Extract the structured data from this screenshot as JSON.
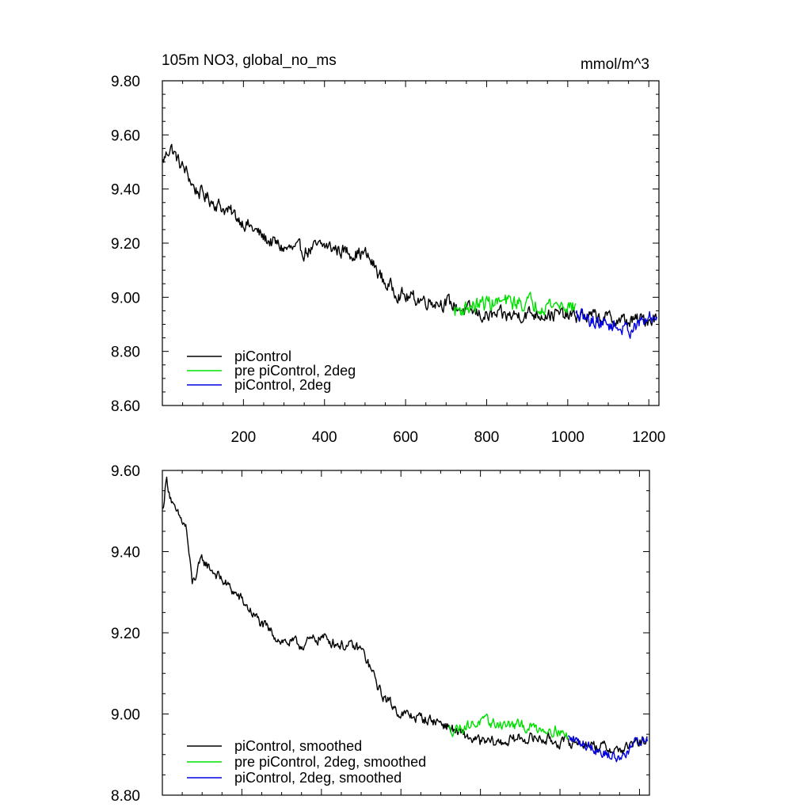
{
  "chart_data": [
    {
      "type": "line",
      "title": "105m NO3, global_no_ms",
      "units": "mmol/m^3",
      "xlim": [
        0,
        1225
      ],
      "ylim": [
        8.6,
        9.8
      ],
      "x_ticks": [
        200,
        400,
        600,
        800,
        1000,
        1200
      ],
      "x_tick_labels": [
        "200",
        "400",
        "600",
        "800",
        "1000",
        "1200"
      ],
      "y_ticks": [
        8.6,
        8.8,
        9.0,
        9.2,
        9.4,
        9.6,
        9.8
      ],
      "y_tick_labels": [
        "8.60",
        "8.80",
        "9.00",
        "9.20",
        "9.40",
        "9.60",
        "9.80"
      ],
      "legend_position": "bottom-left",
      "series": [
        {
          "name": "piControl",
          "color": "#000000",
          "x_range": [
            1,
            1220
          ],
          "anchors": [
            [
              1,
              9.5
            ],
            [
              20,
              9.56
            ],
            [
              40,
              9.5
            ],
            [
              60,
              9.46
            ],
            [
              80,
              9.4
            ],
            [
              100,
              9.38
            ],
            [
              150,
              9.33
            ],
            [
              200,
              9.28
            ],
            [
              250,
              9.22
            ],
            [
              300,
              9.18
            ],
            [
              350,
              9.17
            ],
            [
              400,
              9.19
            ],
            [
              450,
              9.17
            ],
            [
              500,
              9.16
            ],
            [
              520,
              9.12
            ],
            [
              550,
              9.05
            ],
            [
              600,
              9.0
            ],
            [
              650,
              8.99
            ],
            [
              700,
              8.98
            ],
            [
              750,
              8.95
            ],
            [
              800,
              8.93
            ],
            [
              850,
              8.93
            ],
            [
              900,
              8.94
            ],
            [
              950,
              8.94
            ],
            [
              1000,
              8.93
            ],
            [
              1050,
              8.93
            ],
            [
              1100,
              8.92
            ],
            [
              1150,
              8.91
            ],
            [
              1200,
              8.92
            ],
            [
              1220,
              8.93
            ]
          ],
          "noise_amplitude": 0.05
        },
        {
          "name": "pre piControl, 2deg",
          "color": "#00e000",
          "x_range": [
            720,
            1020
          ],
          "anchors": [
            [
              720,
              8.95
            ],
            [
              800,
              8.98
            ],
            [
              900,
              8.98
            ],
            [
              1000,
              8.97
            ],
            [
              1020,
              8.96
            ]
          ],
          "noise_amplitude": 0.055
        },
        {
          "name": "piControl, 2deg",
          "color": "#0000e0",
          "x_range": [
            1020,
            1220
          ],
          "anchors": [
            [
              1020,
              8.93
            ],
            [
              1100,
              8.9
            ],
            [
              1150,
              8.88
            ],
            [
              1200,
              8.92
            ],
            [
              1220,
              8.93
            ]
          ],
          "noise_amplitude": 0.05
        }
      ]
    },
    {
      "type": "line",
      "xlim": [
        0,
        1225
      ],
      "ylim": [
        8.8,
        9.6
      ],
      "y_ticks": [
        8.8,
        9.0,
        9.2,
        9.4,
        9.6
      ],
      "y_tick_labels": [
        "8.80",
        "9.00",
        "9.20",
        "9.40",
        "9.60"
      ],
      "legend_position": "bottom-left",
      "series": [
        {
          "name": "piControl, smoothed",
          "color": "#000000",
          "x_range": [
            1,
            1220
          ],
          "anchors": [
            [
              1,
              9.5
            ],
            [
              10,
              9.58
            ],
            [
              30,
              9.5
            ],
            [
              60,
              9.46
            ],
            [
              75,
              9.32
            ],
            [
              100,
              9.38
            ],
            [
              150,
              9.33
            ],
            [
              200,
              9.28
            ],
            [
              250,
              9.22
            ],
            [
              300,
              9.18
            ],
            [
              350,
              9.17
            ],
            [
              400,
              9.19
            ],
            [
              450,
              9.17
            ],
            [
              500,
              9.16
            ],
            [
              520,
              9.12
            ],
            [
              550,
              9.05
            ],
            [
              600,
              9.0
            ],
            [
              650,
              8.99
            ],
            [
              700,
              8.98
            ],
            [
              750,
              8.95
            ],
            [
              800,
              8.93
            ],
            [
              850,
              8.93
            ],
            [
              900,
              8.94
            ],
            [
              950,
              8.94
            ],
            [
              1000,
              8.93
            ],
            [
              1050,
              8.93
            ],
            [
              1100,
              8.92
            ],
            [
              1150,
              8.91
            ],
            [
              1200,
              8.93
            ],
            [
              1220,
              8.94
            ]
          ],
          "noise_amplitude": 0.025
        },
        {
          "name": "pre piControl, 2deg, smoothed",
          "color": "#00e000",
          "x_range": [
            720,
            1020
          ],
          "anchors": [
            [
              720,
              8.96
            ],
            [
              800,
              8.98
            ],
            [
              900,
              8.97
            ],
            [
              1000,
              8.96
            ],
            [
              1020,
              8.94
            ]
          ],
          "noise_amplitude": 0.025
        },
        {
          "name": "piControl, 2deg, smoothed",
          "color": "#0000e0",
          "x_range": [
            1020,
            1220
          ],
          "anchors": [
            [
              1020,
              8.94
            ],
            [
              1080,
              8.92
            ],
            [
              1120,
              8.9
            ],
            [
              1150,
              8.89
            ],
            [
              1190,
              8.93
            ],
            [
              1220,
              8.94
            ]
          ],
          "noise_amplitude": 0.025
        }
      ]
    }
  ]
}
